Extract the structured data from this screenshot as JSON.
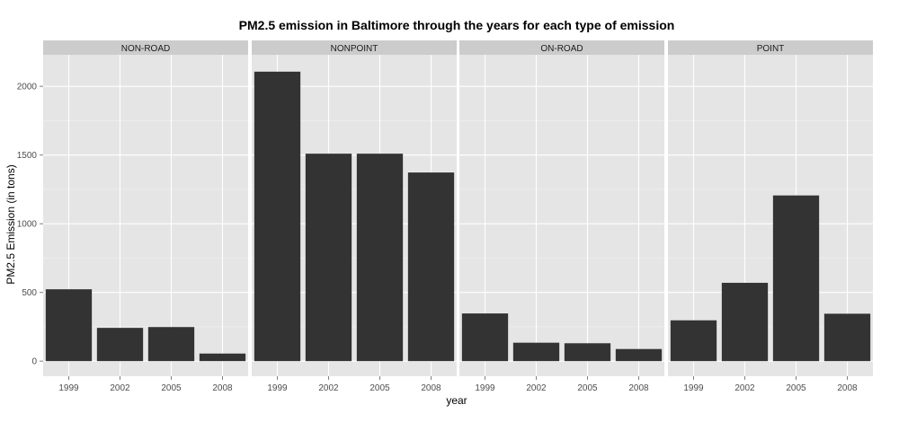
{
  "chart_data": {
    "type": "bar",
    "title": "PM2.5 emission in Baltimore through the years for each type of emission",
    "xlabel": "year",
    "ylabel": "PM2.5 Emission (in tons)",
    "categories": [
      "1999",
      "2002",
      "2005",
      "2008"
    ],
    "ylim": [
      -110,
      2230
    ],
    "yticks": [
      0,
      500,
      1000,
      1500,
      2000
    ],
    "grid": true,
    "legend": "none",
    "colors": {
      "bar": "#333333",
      "panel": "#e5e5e5",
      "strip": "#cccccc",
      "grid_major": "#ffffff",
      "grid_minor": "#f2f2f2"
    },
    "facets": [
      {
        "name": "NON-ROAD",
        "values": [
          523,
          242,
          248,
          55
        ]
      },
      {
        "name": "NONPOINT",
        "values": [
          2107,
          1510,
          1510,
          1373
        ]
      },
      {
        "name": "ON-ROAD",
        "values": [
          347,
          134,
          130,
          88
        ]
      },
      {
        "name": "POINT",
        "values": [
          297,
          570,
          1206,
          345
        ]
      }
    ]
  }
}
